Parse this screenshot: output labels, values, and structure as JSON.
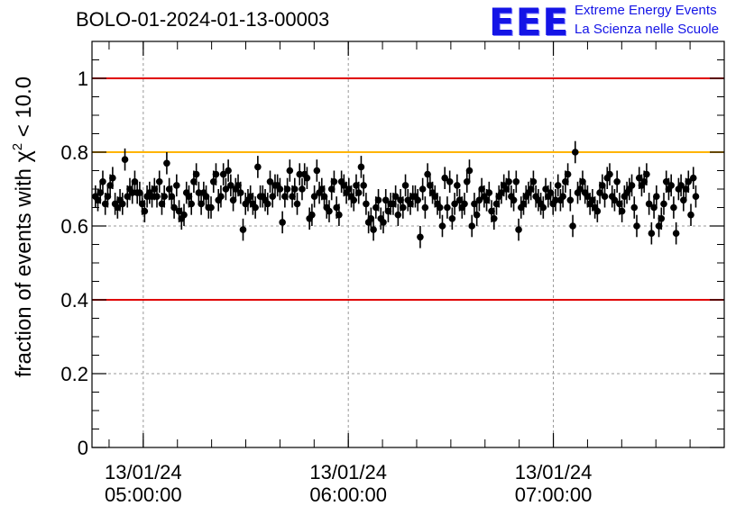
{
  "header": {
    "run_title": "BOLO-01-2024-01-13-00003",
    "logo_text": "EEE",
    "logo_line1": "Extreme Energy Events",
    "logo_line2": "La Scienza nelle Scuole"
  },
  "colors": {
    "limit_line": "#e00000",
    "reference_line": "#ffb400",
    "marker": "#000000",
    "grid": "#999999",
    "logo": "#1414e6"
  },
  "chart_data": {
    "type": "scatter",
    "ylabel_prefix": "fraction of events with ",
    "ylabel_symbol": "χ",
    "ylabel_sup": "2",
    "ylabel_suffix": " < 10.0",
    "xlim_minutes": [
      45,
      230
    ],
    "ylim": [
      0,
      1.1
    ],
    "grid": true,
    "x_ticks": [
      {
        "date": "13/01/24",
        "time": "05:00:00",
        "minutes": 60
      },
      {
        "date": "13/01/24",
        "time": "06:00:00",
        "minutes": 120
      },
      {
        "date": "13/01/24",
        "time": "07:00:00",
        "minutes": 180
      }
    ],
    "y_ticks": [
      {
        "label": "0",
        "value": 0
      },
      {
        "label": "0.2",
        "value": 0.2
      },
      {
        "label": "0.4",
        "value": 0.4
      },
      {
        "label": "0.6",
        "value": 0.6
      },
      {
        "label": "0.8",
        "value": 0.8
      },
      {
        "label": "1",
        "value": 1.0
      }
    ],
    "horizontal_lines": [
      {
        "y": 1.0,
        "color": "#e00000"
      },
      {
        "y": 0.8,
        "color": "#ffb400"
      },
      {
        "y": 0.4,
        "color": "#e00000"
      }
    ],
    "error": 0.03,
    "x_start_minutes": 46,
    "x_step_minutes": 0.72,
    "values": [
      0.68,
      0.67,
      0.69,
      0.72,
      0.66,
      0.68,
      0.71,
      0.73,
      0.66,
      0.65,
      0.67,
      0.66,
      0.78,
      0.68,
      0.7,
      0.69,
      0.72,
      0.69,
      0.69,
      0.66,
      0.64,
      0.68,
      0.69,
      0.68,
      0.7,
      0.68,
      0.72,
      0.66,
      0.68,
      0.77,
      0.7,
      0.68,
      0.65,
      0.71,
      0.64,
      0.62,
      0.63,
      0.69,
      0.68,
      0.66,
      0.72,
      0.74,
      0.69,
      0.66,
      0.69,
      0.68,
      0.65,
      0.65,
      0.72,
      0.74,
      0.67,
      0.68,
      0.74,
      0.7,
      0.75,
      0.71,
      0.67,
      0.7,
      0.71,
      0.69,
      0.59,
      0.66,
      0.67,
      0.68,
      0.66,
      0.65,
      0.76,
      0.68,
      0.68,
      0.67,
      0.66,
      0.72,
      0.68,
      0.71,
      0.71,
      0.7,
      0.61,
      0.68,
      0.7,
      0.75,
      0.68,
      0.7,
      0.66,
      0.74,
      0.7,
      0.74,
      0.73,
      0.62,
      0.63,
      0.68,
      0.75,
      0.69,
      0.7,
      0.68,
      0.65,
      0.64,
      0.7,
      0.72,
      0.65,
      0.63,
      0.72,
      0.71,
      0.69,
      0.7,
      0.68,
      0.67,
      0.71,
      0.69,
      0.76,
      0.71,
      0.66,
      0.61,
      0.62,
      0.59,
      0.65,
      0.67,
      0.62,
      0.61,
      0.67,
      0.64,
      0.66,
      0.66,
      0.68,
      0.63,
      0.67,
      0.65,
      0.71,
      0.67,
      0.66,
      0.68,
      0.68,
      0.67,
      0.57,
      0.7,
      0.65,
      0.74,
      0.71,
      0.69,
      0.68,
      0.66,
      0.65,
      0.6,
      0.73,
      0.65,
      0.72,
      0.62,
      0.66,
      0.71,
      0.67,
      0.65,
      0.66,
      0.72,
      0.75,
      0.6,
      0.66,
      0.63,
      0.67,
      0.7,
      0.68,
      0.67,
      0.69,
      0.64,
      0.62,
      0.66,
      0.68,
      0.69,
      0.71,
      0.7,
      0.72,
      0.68,
      0.67,
      0.72,
      0.59,
      0.65,
      0.66,
      0.68,
      0.69,
      0.7,
      0.72,
      0.68,
      0.67,
      0.66,
      0.65,
      0.7,
      0.68,
      0.69,
      0.66,
      0.67,
      0.71,
      0.67,
      0.68,
      0.72,
      0.74,
      0.67,
      0.6,
      0.8,
      0.69,
      0.7,
      0.72,
      0.69,
      0.68,
      0.66,
      0.67,
      0.65,
      0.64,
      0.69,
      0.71,
      0.68,
      0.73,
      0.74,
      0.68,
      0.67,
      0.72,
      0.66,
      0.64,
      0.68,
      0.69,
      0.7,
      0.71,
      0.65,
      0.6,
      0.73,
      0.71,
      0.72,
      0.74,
      0.66,
      0.58,
      0.65,
      0.68,
      0.6,
      0.62,
      0.66,
      0.72,
      0.7,
      0.71,
      0.65,
      0.58,
      0.7,
      0.71,
      0.67,
      0.7,
      0.72,
      0.63,
      0.73,
      0.68
    ]
  }
}
